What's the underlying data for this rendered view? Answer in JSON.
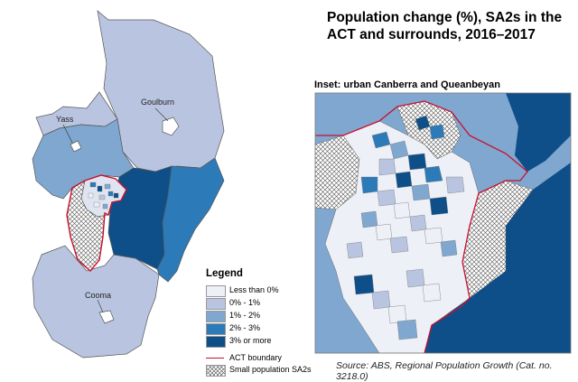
{
  "title": "Population change (%), SA2s in the ACT and surrounds, 2016–2017",
  "inset_label": "Inset:  urban Canberra and Queanbeyan",
  "source": "Source:  ABS, Regional Population Growth (Cat. no. 3218.0)",
  "towns": {
    "goulburn": "Goulburn",
    "yass": "Yass",
    "cooma": "Cooma"
  },
  "legend": {
    "title": "Legend",
    "classes": [
      {
        "label": "Less than 0%",
        "color": "#eef0f8"
      },
      {
        "label": "0% - 1%",
        "color": "#b9c5e0"
      },
      {
        "label": "1% - 2%",
        "color": "#7fa7cf"
      },
      {
        "label": "2% - 3%",
        "color": "#2d7ab8"
      },
      {
        "label": "3% or more",
        "color": "#0e4f89"
      }
    ],
    "boundary_label": "ACT boundary",
    "boundary_color": "#c8102e",
    "small_pop_label": "Small population SA2s"
  }
}
